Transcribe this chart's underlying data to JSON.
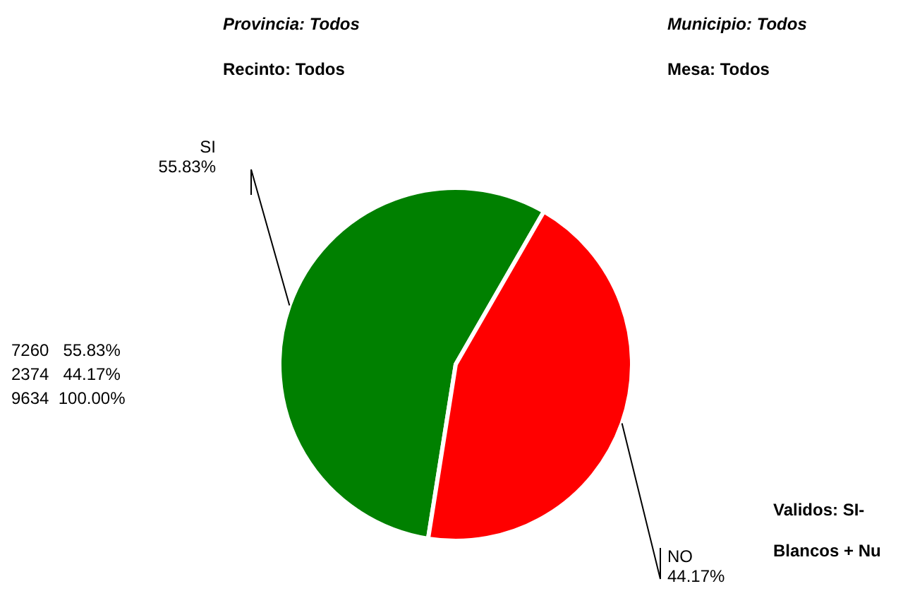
{
  "chart_data": {
    "type": "pie",
    "categories": [
      "SI",
      "NO"
    ],
    "values": [
      55.83,
      44.17
    ],
    "value_labels": [
      "55.83%",
      "44.17%"
    ],
    "colors": [
      "#008000",
      "#ff0000"
    ],
    "annotations": [
      "Provincia: Todos",
      "Municipio: Todos",
      "Recinto: Todos",
      "Mesa: Todos",
      "7260   55.83%",
      "2374   44.17%",
      "9634  100.00%",
      "Validos: SI-",
      "Blancos + Nu"
    ]
  }
}
